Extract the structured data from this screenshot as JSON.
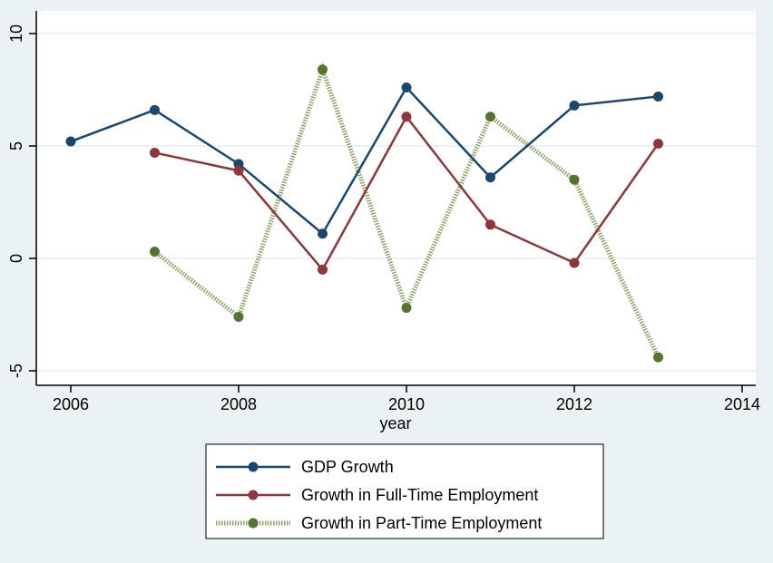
{
  "chart_data": {
    "type": "line",
    "xlabel": "year",
    "ylabel": "",
    "xlim": [
      2006,
      2014
    ],
    "ylim": [
      -5,
      10
    ],
    "xticks": [
      "2006",
      "2008",
      "2010",
      "2012",
      "2014"
    ],
    "yticks": [
      "-5",
      "0",
      "5",
      "10"
    ],
    "grid": true,
    "legend_position": "bottom",
    "series": [
      {
        "name": "GDP Growth",
        "color": "#1a476f",
        "style": "solid",
        "x": [
          2006,
          2007,
          2008,
          2009,
          2010,
          2011,
          2012,
          2013
        ],
        "y": [
          5.2,
          6.6,
          4.2,
          1.1,
          7.6,
          3.6,
          6.8,
          7.2
        ]
      },
      {
        "name": "Growth in Full-Time Employment",
        "color": "#90353b",
        "style": "solid",
        "x": [
          2007,
          2008,
          2009,
          2010,
          2011,
          2012,
          2013
        ],
        "y": [
          4.7,
          3.9,
          -0.5,
          6.3,
          1.5,
          -0.2,
          5.1
        ]
      },
      {
        "name": "Growth in Part-Time Employment",
        "color": "#55752f",
        "style": "dotted",
        "x": [
          2007,
          2008,
          2009,
          2010,
          2011,
          2012,
          2013
        ],
        "y": [
          0.3,
          -2.6,
          8.4,
          -2.2,
          6.3,
          3.5,
          -4.4
        ]
      }
    ]
  }
}
